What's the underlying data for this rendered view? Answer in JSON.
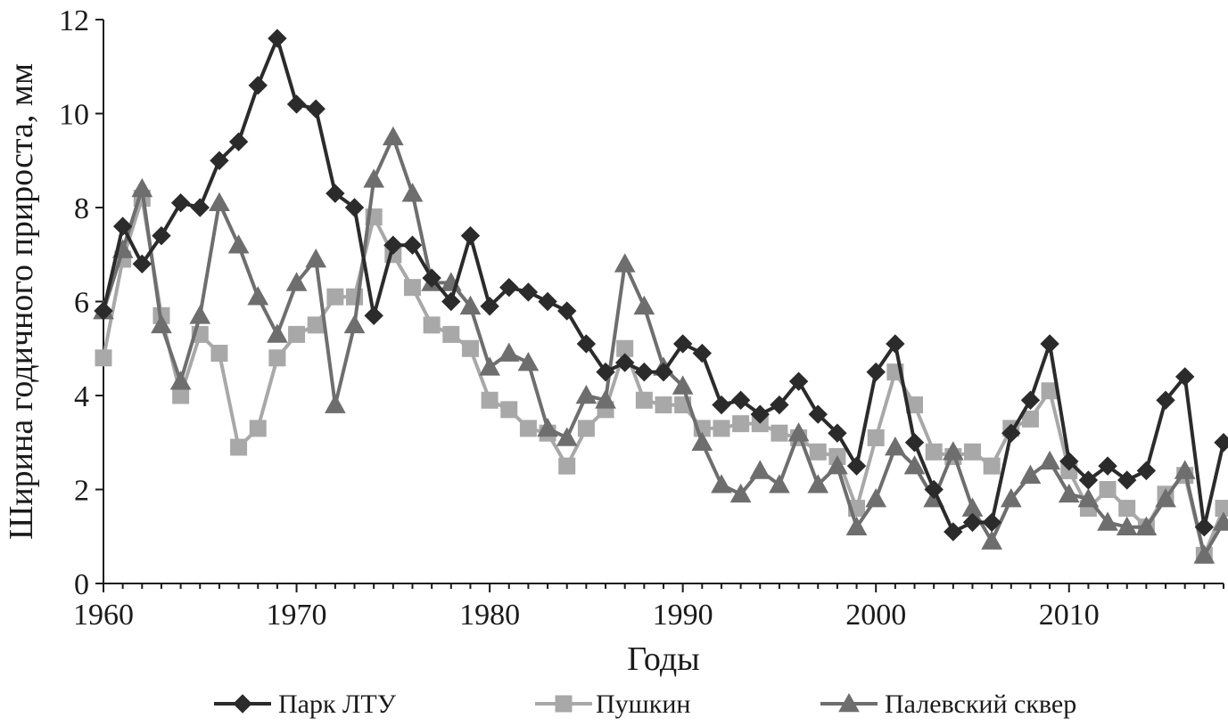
{
  "chart_data": {
    "type": "line",
    "title": "",
    "xlabel": "Годы",
    "ylabel": "Ширина годичного прироста, мм",
    "xlim": [
      1960,
      2018
    ],
    "ylim": [
      0,
      12
    ],
    "x_ticks": [
      1960,
      1970,
      1980,
      1990,
      2000,
      2010
    ],
    "y_ticks": [
      0,
      2,
      4,
      6,
      8,
      10,
      12
    ],
    "grid": false,
    "legend_position": "bottom",
    "x": [
      1960,
      1961,
      1962,
      1963,
      1964,
      1965,
      1966,
      1967,
      1968,
      1969,
      1970,
      1971,
      1972,
      1973,
      1974,
      1975,
      1976,
      1977,
      1978,
      1979,
      1980,
      1981,
      1982,
      1983,
      1984,
      1985,
      1986,
      1987,
      1988,
      1989,
      1990,
      1991,
      1992,
      1993,
      1994,
      1995,
      1996,
      1997,
      1998,
      1999,
      2000,
      2001,
      2002,
      2003,
      2004,
      2005,
      2006,
      2007,
      2008,
      2009,
      2010,
      2011,
      2012,
      2013,
      2014,
      2015,
      2016,
      2017,
      2018
    ],
    "series": [
      {
        "name": "Парк ЛТУ",
        "color": "#2b2b2b",
        "marker": "diamond",
        "values": [
          5.8,
          7.6,
          6.8,
          7.4,
          8.1,
          8.0,
          9.0,
          9.4,
          10.6,
          11.6,
          10.2,
          10.1,
          8.3,
          8.0,
          5.7,
          7.2,
          7.2,
          6.5,
          6.0,
          7.4,
          5.9,
          6.3,
          6.2,
          6.0,
          5.8,
          5.1,
          4.5,
          4.7,
          4.5,
          4.5,
          5.1,
          4.9,
          3.8,
          3.9,
          3.6,
          3.8,
          4.3,
          3.6,
          3.2,
          2.5,
          4.5,
          5.1,
          3.0,
          2.0,
          1.1,
          1.3,
          1.3,
          3.2,
          3.9,
          5.1,
          2.6,
          2.2,
          2.5,
          2.2,
          2.4,
          3.9,
          4.4,
          1.2,
          3.0
        ]
      },
      {
        "name": "Пушкин",
        "color": "#a8a8a8",
        "marker": "square",
        "values": [
          4.8,
          6.9,
          8.2,
          5.7,
          4.0,
          5.3,
          4.9,
          2.9,
          3.3,
          4.8,
          5.3,
          5.5,
          6.1,
          6.1,
          7.8,
          7.0,
          6.3,
          5.5,
          5.3,
          5.0,
          3.9,
          3.7,
          3.3,
          3.2,
          2.5,
          3.3,
          3.7,
          5.0,
          3.9,
          3.8,
          3.8,
          3.3,
          3.3,
          3.4,
          3.4,
          3.2,
          3.1,
          2.8,
          2.7,
          1.6,
          3.1,
          4.5,
          3.8,
          2.8,
          2.7,
          2.8,
          2.5,
          3.3,
          3.5,
          4.1,
          2.4,
          1.6,
          2.0,
          1.6,
          1.2,
          1.9,
          2.3,
          0.6,
          1.6
        ]
      },
      {
        "name": "Палевский сквер",
        "color": "#6e6e6e",
        "marker": "triangle",
        "values": [
          5.8,
          7.1,
          8.4,
          5.5,
          4.3,
          5.7,
          8.1,
          7.2,
          6.1,
          5.3,
          6.4,
          6.9,
          3.8,
          5.5,
          8.6,
          9.5,
          8.3,
          6.4,
          6.4,
          5.9,
          4.6,
          4.9,
          4.7,
          3.3,
          3.1,
          4.0,
          3.9,
          6.8,
          5.9,
          4.6,
          4.2,
          3.0,
          2.1,
          1.9,
          2.4,
          2.1,
          3.2,
          2.1,
          2.5,
          1.2,
          1.8,
          2.9,
          2.5,
          1.8,
          2.8,
          1.6,
          0.9,
          1.8,
          2.3,
          2.6,
          1.9,
          1.8,
          1.3,
          1.2,
          1.2,
          1.8,
          2.4,
          0.6,
          1.3
        ]
      }
    ]
  }
}
